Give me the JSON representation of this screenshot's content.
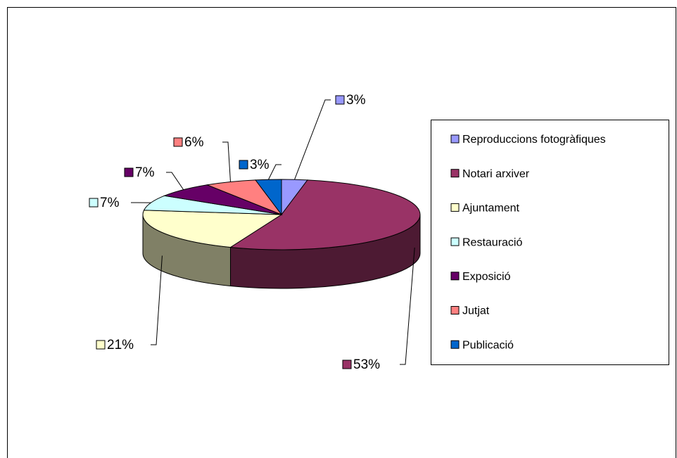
{
  "chart_data": {
    "type": "pie3d",
    "categories": [
      "Reproduccions fotogràfiques",
      "Notari arxiver",
      "Ajuntament",
      "Restauració",
      "Exposició",
      "Jutjat",
      "Publicació"
    ],
    "values": [
      3,
      53,
      21,
      7,
      7,
      6,
      3
    ],
    "value_labels": [
      "3%",
      "53%",
      "21%",
      "7%",
      "7%",
      "6%",
      "3%"
    ],
    "colors": [
      "#9999ff",
      "#993366",
      "#ffffcc",
      "#ccffff",
      "#660066",
      "#ff8080",
      "#0066cc"
    ],
    "legend": "right"
  }
}
